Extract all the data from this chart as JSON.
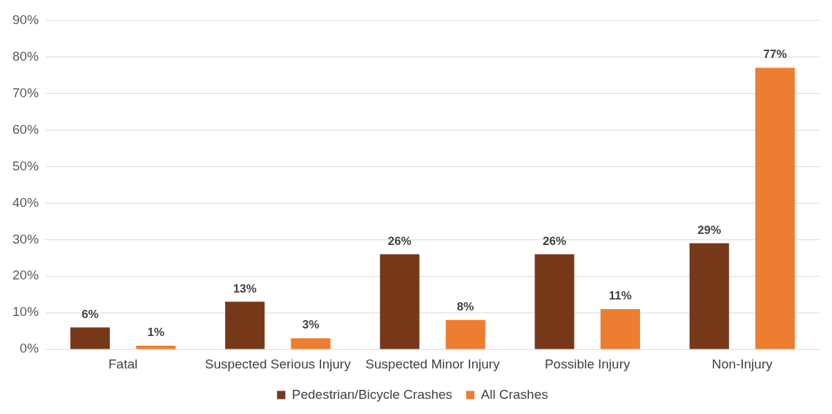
{
  "chart_data": {
    "type": "bar",
    "categories": [
      "Fatal",
      "Suspected Serious Injury",
      "Suspected Minor Injury",
      "Possible Injury",
      "Non-Injury"
    ],
    "series": [
      {
        "name": "Pedestrian/Bicycle Crashes",
        "color": "#77381a",
        "values": [
          6,
          13,
          26,
          26,
          29
        ],
        "value_labels": [
          "6%",
          "13%",
          "26%",
          "26%",
          "29%"
        ]
      },
      {
        "name": "All Crashes",
        "color": "#ed7d31",
        "values": [
          1,
          3,
          8,
          11,
          77
        ],
        "value_labels": [
          "1%",
          "3%",
          "8%",
          "11%",
          "77%"
        ]
      }
    ],
    "ylim": [
      0,
      90
    ],
    "yticks": [
      {
        "value": 0,
        "label": "0%"
      },
      {
        "value": 10,
        "label": "10%"
      },
      {
        "value": 20,
        "label": "20%"
      },
      {
        "value": 30,
        "label": "30%"
      },
      {
        "value": 40,
        "label": "40%"
      },
      {
        "value": 50,
        "label": "50%"
      },
      {
        "value": 60,
        "label": "60%"
      },
      {
        "value": 70,
        "label": "70%"
      },
      {
        "value": 80,
        "label": "80%"
      },
      {
        "value": 90,
        "label": "90%"
      }
    ],
    "grid": "y",
    "legend": "bottom"
  }
}
